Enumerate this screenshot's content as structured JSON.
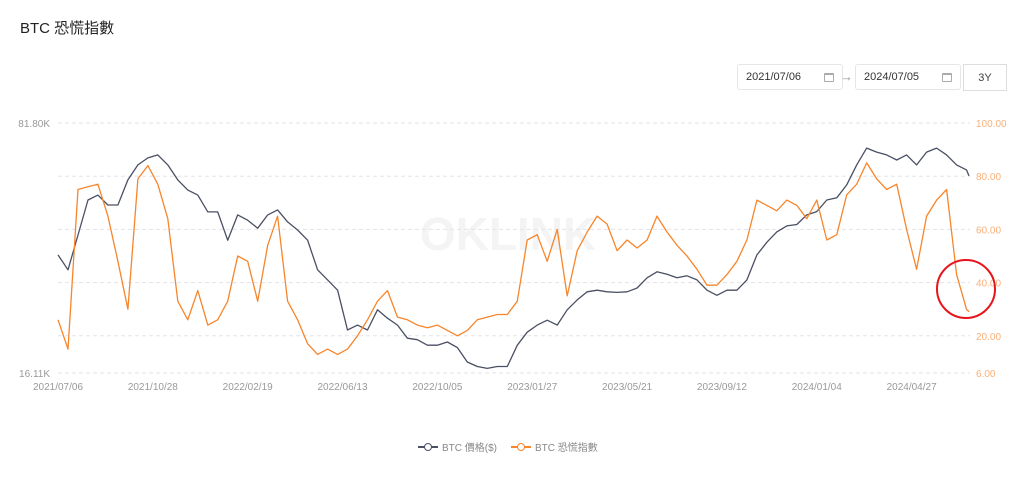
{
  "title": "BTC 恐慌指數",
  "date_range": {
    "start": "2021/07/06",
    "end": "2024/07/05",
    "preset": "3Y",
    "calendar_icon": "calendar-icon",
    "arrow_icon": "arrow-right-icon"
  },
  "watermark": "OKLINK",
  "colors": {
    "price": "#4a4f63",
    "fear": "#f7852b",
    "annotation": "#e8141b",
    "grid": "#e3e3ea"
  },
  "chart_data": {
    "type": "line",
    "title": "",
    "left_axis": {
      "scale": "log",
      "range": [
        16.11,
        81.8
      ],
      "tick_labels": [
        "81.80K",
        "16.11K"
      ],
      "unit": "K"
    },
    "right_axis": {
      "scale": "linear",
      "range": [
        6,
        100
      ],
      "ticks": [
        100,
        80,
        60,
        40,
        20,
        6
      ],
      "tick_labels": [
        "100.00",
        "80.00",
        "60.00",
        "40.00",
        "20.00",
        "6.00"
      ]
    },
    "x_tick_labels": [
      "2021/07/06",
      "2021/10/28",
      "2022/02/19",
      "2022/06/13",
      "2022/10/05",
      "2023/01/27",
      "2023/05/21",
      "2023/09/12",
      "2024/01/04",
      "2024/04/27"
    ],
    "grid": "horizontal dashed",
    "legend_placement": "bottom",
    "annotation": "red circle around latest fear index drop",
    "x": [
      "2021-07-06",
      "2021-07-18",
      "2021-07-30",
      "2021-08-11",
      "2021-08-23",
      "2021-09-04",
      "2021-09-16",
      "2021-09-28",
      "2021-10-10",
      "2021-10-22",
      "2021-11-03",
      "2021-11-15",
      "2021-11-27",
      "2021-12-09",
      "2021-12-21",
      "2022-01-02",
      "2022-01-14",
      "2022-01-26",
      "2022-02-07",
      "2022-02-19",
      "2022-03-03",
      "2022-03-15",
      "2022-03-27",
      "2022-04-08",
      "2022-04-20",
      "2022-05-02",
      "2022-05-14",
      "2022-05-26",
      "2022-06-07",
      "2022-06-19",
      "2022-07-01",
      "2022-07-13",
      "2022-07-25",
      "2022-08-06",
      "2022-08-18",
      "2022-08-30",
      "2022-09-11",
      "2022-09-23",
      "2022-10-05",
      "2022-10-17",
      "2022-10-29",
      "2022-11-10",
      "2022-11-22",
      "2022-12-04",
      "2022-12-16",
      "2022-12-28",
      "2023-01-09",
      "2023-01-21",
      "2023-02-02",
      "2023-02-14",
      "2023-02-26",
      "2023-03-10",
      "2023-03-22",
      "2023-04-03",
      "2023-04-15",
      "2023-04-27",
      "2023-05-09",
      "2023-05-21",
      "2023-06-02",
      "2023-06-14",
      "2023-06-26",
      "2023-07-08",
      "2023-07-20",
      "2023-08-01",
      "2023-08-13",
      "2023-08-25",
      "2023-09-06",
      "2023-09-18",
      "2023-09-30",
      "2023-10-12",
      "2023-10-24",
      "2023-11-05",
      "2023-11-17",
      "2023-11-29",
      "2023-12-11",
      "2023-12-23",
      "2024-01-04",
      "2024-01-16",
      "2024-01-28",
      "2024-02-09",
      "2024-02-21",
      "2024-03-04",
      "2024-03-16",
      "2024-03-28",
      "2024-04-09",
      "2024-04-21",
      "2024-05-03",
      "2024-05-15",
      "2024-05-27",
      "2024-06-08",
      "2024-06-20",
      "2024-07-02",
      "2024-07-05"
    ],
    "series": [
      {
        "name": "BTC 價格($)",
        "axis": "left",
        "values": [
          34.7,
          31.5,
          39.5,
          49.6,
          51.2,
          48.0,
          48.0,
          56.5,
          62.3,
          65.2,
          66.5,
          62.3,
          56.5,
          52.9,
          51.2,
          45.9,
          45.9,
          38.2,
          45.0,
          43.5,
          41.3,
          45.0,
          46.5,
          43.0,
          40.8,
          38.2,
          31.5,
          29.5,
          27.6,
          21.3,
          22.0,
          21.3,
          24.3,
          23.0,
          22.0,
          20.2,
          20.0,
          19.3,
          19.3,
          19.7,
          19.0,
          17.3,
          16.8,
          16.6,
          16.8,
          16.8,
          19.3,
          21.0,
          22.0,
          22.7,
          22.0,
          24.3,
          25.9,
          27.3,
          27.6,
          27.3,
          27.2,
          27.3,
          28.0,
          29.9,
          31.1,
          30.6,
          29.9,
          30.3,
          29.5,
          27.6,
          26.7,
          27.6,
          27.6,
          29.5,
          34.7,
          37.7,
          40.3,
          41.9,
          42.3,
          45.0,
          46.0,
          49.6,
          50.3,
          54.7,
          62.3,
          69.5,
          67.7,
          66.5,
          64.3,
          66.5,
          62.3,
          67.7,
          69.5,
          66.5,
          62.3,
          60.3,
          58.0
        ]
      },
      {
        "name": "BTC 恐慌指數",
        "axis": "right",
        "values": [
          26,
          15,
          75,
          76,
          77,
          65,
          48,
          30,
          79,
          84,
          77,
          64,
          33,
          26,
          37,
          24,
          26,
          33,
          50,
          48,
          33,
          54,
          65,
          33,
          26,
          17,
          13,
          15,
          13,
          15,
          20,
          26,
          33,
          37,
          27,
          26,
          24,
          23,
          24,
          22,
          20,
          22,
          26,
          27,
          28,
          28,
          33,
          56,
          58,
          48,
          60,
          35,
          52,
          59,
          65,
          62,
          52,
          56,
          53,
          56,
          65,
          59,
          54,
          50,
          45,
          39,
          39,
          43,
          48,
          56,
          71,
          69,
          67,
          71,
          69,
          64,
          71,
          56,
          58,
          73,
          77,
          85,
          79,
          75,
          77,
          60,
          45,
          65,
          71,
          75,
          43,
          30,
          29
        ]
      }
    ]
  }
}
